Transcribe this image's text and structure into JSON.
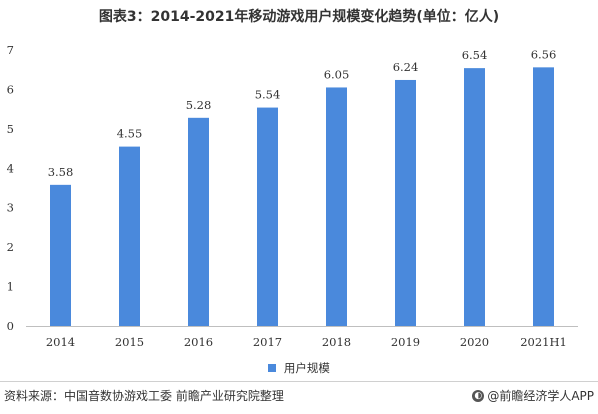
{
  "title": "图表3：2014-2021年移动游戏用户规模变化趋势(单位：亿人)",
  "legend": {
    "label": "用户规模",
    "color": "#4a89dc"
  },
  "footer": {
    "source": "资料来源：中国音数协游戏工委 前瞻产业研究院整理",
    "brand": "@前瞻经济学人APP"
  },
  "chart_data": {
    "type": "bar",
    "title": "图表3：2014-2021年移动游戏用户规模变化趋势(单位：亿人)",
    "categories": [
      "2014",
      "2015",
      "2016",
      "2017",
      "2018",
      "2019",
      "2020",
      "2021H1"
    ],
    "series": [
      {
        "name": "用户规模",
        "values": [
          3.58,
          4.55,
          5.28,
          5.54,
          6.05,
          6.24,
          6.54,
          6.56
        ],
        "color": "#4a89dc"
      }
    ],
    "xlabel": "",
    "ylabel": "",
    "ylim": [
      0,
      7
    ],
    "yticks": [
      "0",
      "1",
      "2",
      "3",
      "4",
      "5",
      "6",
      "7"
    ],
    "data_labels": [
      "3.58",
      "4.55",
      "5.28",
      "5.54",
      "6.05",
      "6.24",
      "6.54",
      "6.56"
    ],
    "grid": false,
    "legend_position": "bottom"
  }
}
